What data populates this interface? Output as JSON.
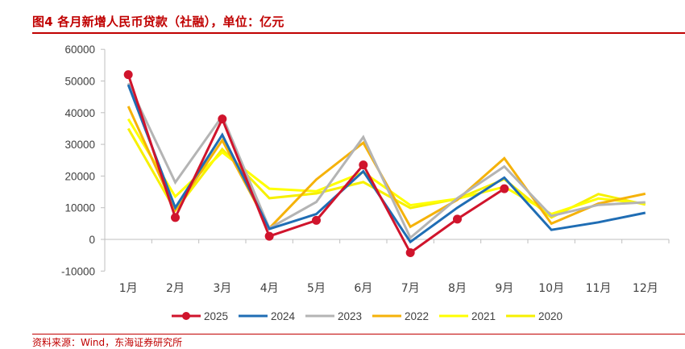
{
  "title": "图4 各月新增人民币贷款（社融），单位：亿元",
  "footer": "资料来源：Wind，东海证券研究所",
  "chart_data": {
    "type": "line",
    "title": "图4 各月新增人民币贷款（社融），单位：亿元",
    "xlabel": "",
    "ylabel": "",
    "ylim": [
      -10000,
      60000
    ],
    "yticks": [
      -10000,
      0,
      10000,
      20000,
      30000,
      40000,
      50000,
      60000
    ],
    "ytick_labels": [
      "-10000",
      "0",
      "10000",
      "20000",
      "30000",
      "40000",
      "50000",
      "60000"
    ],
    "categories": [
      "1月",
      "2月",
      "3月",
      "4月",
      "5月",
      "6月",
      "7月",
      "8月",
      "9月",
      "10月",
      "11月",
      "12月"
    ],
    "grid": false,
    "legend_position": "bottom",
    "series": [
      {
        "name": "2025",
        "color": "#d0142c",
        "marker": "circle",
        "values": [
          52000,
          6900,
          38000,
          1000,
          6000,
          23500,
          -4200,
          6400,
          16000,
          null,
          null,
          null
        ]
      },
      {
        "name": "2024",
        "color": "#1f6db4",
        "marker": "none",
        "values": [
          48800,
          10000,
          33000,
          3300,
          8000,
          21500,
          -800,
          10000,
          19500,
          3000,
          5400,
          8400
        ]
      },
      {
        "name": "2023",
        "color": "#b4b4b4",
        "marker": "none",
        "values": [
          49300,
          18000,
          38900,
          3500,
          11800,
          32300,
          500,
          13000,
          23000,
          7400,
          10900,
          11700
        ]
      },
      {
        "name": "2022",
        "color": "#f5b20a",
        "marker": "none",
        "values": [
          42000,
          9300,
          31300,
          3500,
          18900,
          30500,
          4000,
          12500,
          25600,
          5000,
          11300,
          14400
        ]
      },
      {
        "name": "2021",
        "color": "#ffff00",
        "marker": "none",
        "values": [
          38000,
          13500,
          27500,
          16000,
          15200,
          21200,
          10800,
          12800,
          16600,
          8000,
          12900,
          11300
        ]
      },
      {
        "name": "2020",
        "color": "#f6f000",
        "marker": "none",
        "values": [
          35000,
          9100,
          28500,
          13000,
          14500,
          18100,
          9900,
          12800,
          19000,
          6900,
          14300,
          11000
        ]
      }
    ]
  }
}
